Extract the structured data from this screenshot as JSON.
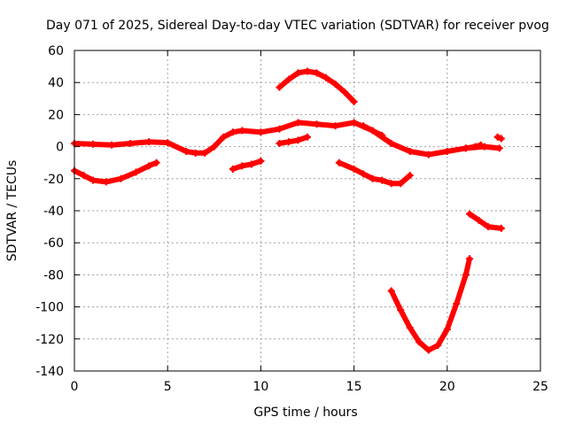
{
  "chart_data": {
    "type": "scatter",
    "title": "Day 071 of 2025, Sidereal Day-to-day VTEC variation (SDTVAR) for receiver pvog",
    "xlabel": "GPS time / hours",
    "ylabel": "SDTVAR / TECUs",
    "xlim": [
      0,
      25
    ],
    "ylim": [
      -140,
      60
    ],
    "xticks": [
      0,
      5,
      10,
      15,
      20,
      25
    ],
    "yticks": [
      -140,
      -120,
      -100,
      -80,
      -60,
      -40,
      -20,
      0,
      20,
      40,
      60
    ],
    "grid": true,
    "marker_color": "#ff0000",
    "series": [
      {
        "name": "main",
        "points": [
          [
            0,
            2
          ],
          [
            1,
            1.5
          ],
          [
            2,
            1
          ],
          [
            3,
            2
          ],
          [
            4,
            3
          ],
          [
            5,
            2.5
          ],
          [
            6,
            -3
          ],
          [
            6.5,
            -4
          ],
          [
            7,
            -4
          ],
          [
            7.5,
            0
          ],
          [
            8,
            6
          ],
          [
            8.5,
            9
          ],
          [
            9,
            10
          ],
          [
            10,
            9
          ],
          [
            11,
            11
          ],
          [
            12,
            15
          ],
          [
            13,
            14
          ],
          [
            14,
            13
          ],
          [
            15,
            15
          ],
          [
            16,
            10
          ],
          [
            17,
            2
          ],
          [
            18,
            -3
          ],
          [
            19,
            -5
          ],
          [
            20,
            -3
          ],
          [
            21,
            -1
          ],
          [
            22,
            0
          ],
          [
            22.8,
            -1
          ]
        ]
      },
      {
        "name": "arc1",
        "points": [
          [
            0,
            -15
          ],
          [
            0.5,
            -18
          ],
          [
            1,
            -21
          ],
          [
            1.7,
            -22
          ],
          [
            2.5,
            -20
          ],
          [
            3.3,
            -16
          ],
          [
            4,
            -12
          ],
          [
            4.4,
            -10
          ]
        ]
      },
      {
        "name": "arc2",
        "points": [
          [
            8.5,
            -14
          ],
          [
            9,
            -12
          ],
          [
            9.5,
            -11
          ],
          [
            10,
            -9
          ]
        ]
      },
      {
        "name": "arc3",
        "points": [
          [
            11,
            2
          ],
          [
            11.5,
            3
          ],
          [
            12,
            4
          ],
          [
            12.5,
            6
          ]
        ]
      },
      {
        "name": "arc4",
        "points": [
          [
            11,
            37
          ],
          [
            11.5,
            42
          ],
          [
            12,
            46
          ],
          [
            12.5,
            47
          ],
          [
            13,
            46
          ],
          [
            13.5,
            43
          ],
          [
            14,
            39
          ],
          [
            14.5,
            34
          ],
          [
            15,
            28
          ]
        ]
      },
      {
        "name": "arc5",
        "points": [
          [
            14.2,
            -10
          ],
          [
            15,
            -14
          ],
          [
            15.5,
            -17
          ],
          [
            16,
            -20
          ],
          [
            16.5,
            -21
          ],
          [
            17,
            -23
          ],
          [
            17.5,
            -23
          ],
          [
            18,
            -18
          ]
        ]
      },
      {
        "name": "arc6",
        "points": [
          [
            15.5,
            13
          ],
          [
            16,
            10
          ],
          [
            16.5,
            7
          ]
        ]
      },
      {
        "name": "arc7",
        "points": [
          [
            17,
            -90
          ],
          [
            17.5,
            -102
          ],
          [
            18,
            -113
          ],
          [
            18.5,
            -122
          ],
          [
            19,
            -127
          ],
          [
            19.5,
            -124
          ],
          [
            20,
            -114
          ],
          [
            20.5,
            -98
          ],
          [
            21,
            -80
          ],
          [
            21.2,
            -70
          ]
        ]
      },
      {
        "name": "arc8",
        "points": [
          [
            21.2,
            -42
          ],
          [
            21.7,
            -46
          ],
          [
            22.2,
            -50
          ],
          [
            22.9,
            -51
          ]
        ]
      },
      {
        "name": "arc9",
        "points": [
          [
            21,
            -1
          ],
          [
            21.5,
            0
          ],
          [
            21.8,
            1
          ]
        ]
      },
      {
        "name": "arc10",
        "points": [
          [
            22.7,
            6
          ],
          [
            22.9,
            5
          ]
        ]
      }
    ]
  }
}
